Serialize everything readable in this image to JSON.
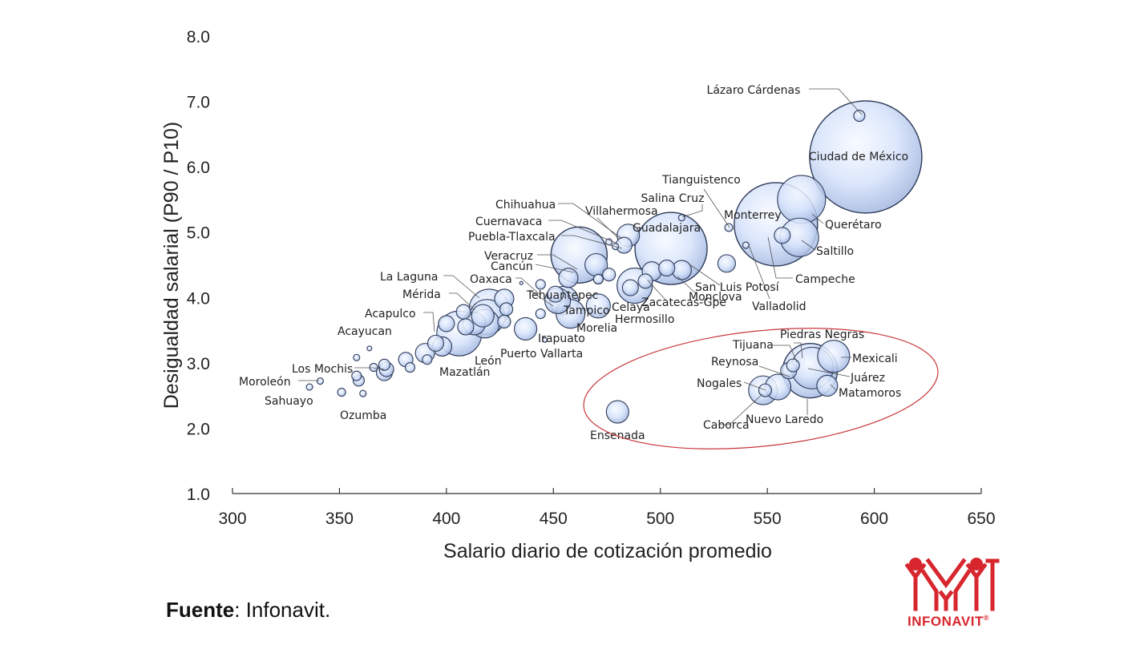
{
  "chart_data": {
    "type": "scatter",
    "subtype": "bubble",
    "xlabel": "Salario diario de cotización promedio",
    "ylabel": "Desigualdad salarial (P90 / P10)",
    "xlim": [
      300,
      650
    ],
    "ylim": [
      1.0,
      8.0
    ],
    "xticks": [
      "300",
      "350",
      "400",
      "450",
      "500",
      "550",
      "600",
      "650"
    ],
    "yticks": [
      "1.0",
      "2.0",
      "3.0",
      "4.0",
      "5.0",
      "6.0",
      "7.0",
      "8.0"
    ],
    "labeled_points": [
      {
        "name": "Lázaro Cárdenas",
        "x": 593,
        "y": 6.78,
        "r": 7
      },
      {
        "name": "Ciudad de México",
        "x": 596,
        "y": 6.15,
        "r": 70
      },
      {
        "name": "Tianguistenco",
        "x": 532,
        "y": 5.07,
        "r": 5
      },
      {
        "name": "Monterrey",
        "x": 554,
        "y": 5.12,
        "r": 52
      },
      {
        "name": "Querétaro",
        "x": 566,
        "y": 5.5,
        "r": 30
      },
      {
        "name": "Saltillo",
        "x": 565,
        "y": 4.92,
        "r": 24
      },
      {
        "name": "Campeche",
        "x": 557,
        "y": 4.95,
        "r": 10
      },
      {
        "name": "Valladolid",
        "x": 540,
        "y": 4.8,
        "r": 4
      },
      {
        "name": "Salina Cruz",
        "x": 510,
        "y": 5.22,
        "r": 4
      },
      {
        "name": "Guadalajara",
        "x": 505,
        "y": 4.75,
        "r": 45
      },
      {
        "name": "San Luis Potosí",
        "x": 510,
        "y": 4.42,
        "r": 12
      },
      {
        "name": "Monclova",
        "x": 493,
        "y": 4.25,
        "r": 9
      },
      {
        "name": "Zacatecas-Gpe",
        "x": 488,
        "y": 4.18,
        "r": 22
      },
      {
        "name": "Hermosillo",
        "x": 486,
        "y": 4.15,
        "r": 10
      },
      {
        "name": "Villahermosa",
        "x": 476,
        "y": 4.85,
        "r": 4
      },
      {
        "name": "Chihuahua",
        "x": 479,
        "y": 4.78,
        "r": 4
      },
      {
        "name": "Cuernavaca",
        "x": 470,
        "y": 4.5,
        "r": 14
      },
      {
        "name": "Puebla-Tlaxcala",
        "x": 462,
        "y": 4.65,
        "r": 35
      },
      {
        "name": "Veracruz",
        "x": 471,
        "y": 4.28,
        "r": 6
      },
      {
        "name": "Celaya",
        "x": 476,
        "y": 4.35,
        "r": 8
      },
      {
        "name": "Cancún",
        "x": 457,
        "y": 4.3,
        "r": 12
      },
      {
        "name": "Oaxaca",
        "x": 435,
        "y": 4.22,
        "r": 2
      },
      {
        "name": "Tehuantepec",
        "x": 444,
        "y": 3.75,
        "r": 6
      },
      {
        "name": "Tampico",
        "x": 452,
        "y": 3.95,
        "r": 16
      },
      {
        "name": "Morelia",
        "x": 471,
        "y": 3.87,
        "r": 15
      },
      {
        "name": "Irapuato",
        "x": 446,
        "y": 3.35,
        "r": 3
      },
      {
        "name": "Puerto Vallarta",
        "x": 437,
        "y": 3.52,
        "r": 14
      },
      {
        "name": "La Laguna",
        "x": 419,
        "y": 3.7,
        "r": 22
      },
      {
        "name": "Mérida",
        "x": 420,
        "y": 3.82,
        "r": 25
      },
      {
        "name": "León",
        "x": 406,
        "y": 3.45,
        "r": 28
      },
      {
        "name": "Mazatlán",
        "x": 398,
        "y": 3.25,
        "r": 12
      },
      {
        "name": "Acapulco",
        "x": 395,
        "y": 3.3,
        "r": 10
      },
      {
        "name": "Acayucan",
        "x": 364,
        "y": 3.22,
        "r": 3
      },
      {
        "name": "Los Mochis",
        "x": 372,
        "y": 2.9,
        "r": 9
      },
      {
        "name": "Moroleón",
        "x": 341,
        "y": 2.72,
        "r": 4
      },
      {
        "name": "Sahuayo",
        "x": 336,
        "y": 2.63,
        "r": 4
      },
      {
        "name": "Ozumba",
        "x": 361,
        "y": 2.53,
        "r": 4
      },
      {
        "name": "Ensenada",
        "x": 480,
        "y": 2.25,
        "r": 14
      },
      {
        "name": "Tijuana",
        "x": 570,
        "y": 2.88,
        "r": 34
      },
      {
        "name": "Piedras Negras",
        "x": 562,
        "y": 2.96,
        "r": 8
      },
      {
        "name": "Mexicali",
        "x": 581,
        "y": 3.1,
        "r": 20
      },
      {
        "name": "Juárez",
        "x": 571,
        "y": 2.92,
        "r": 26
      },
      {
        "name": "Matamoros",
        "x": 578,
        "y": 2.65,
        "r": 13
      },
      {
        "name": "Reynosa",
        "x": 560,
        "y": 2.88,
        "r": 10
      },
      {
        "name": "Nogales",
        "x": 549,
        "y": 2.58,
        "r": 8
      },
      {
        "name": "Nuevo Laredo",
        "x": 555,
        "y": 2.63,
        "r": 16
      },
      {
        "name": "Caborca",
        "x": 548,
        "y": 2.58,
        "r": 18
      }
    ],
    "unlabeled_points": [
      {
        "x": 383,
        "y": 2.93,
        "r": 6
      },
      {
        "x": 381,
        "y": 3.05,
        "r": 9
      },
      {
        "x": 391,
        "y": 3.05,
        "r": 6
      },
      {
        "x": 390,
        "y": 3.15,
        "r": 12
      },
      {
        "x": 400,
        "y": 3.6,
        "r": 10
      },
      {
        "x": 409,
        "y": 3.55,
        "r": 10
      },
      {
        "x": 408,
        "y": 3.78,
        "r": 9
      },
      {
        "x": 413,
        "y": 3.6,
        "r": 14
      },
      {
        "x": 418,
        "y": 3.6,
        "r": 18
      },
      {
        "x": 427,
        "y": 3.98,
        "r": 12
      },
      {
        "x": 428,
        "y": 3.82,
        "r": 8
      },
      {
        "x": 451,
        "y": 4.05,
        "r": 10
      },
      {
        "x": 455,
        "y": 3.95,
        "r": 18
      },
      {
        "x": 458,
        "y": 3.75,
        "r": 18
      },
      {
        "x": 496,
        "y": 4.4,
        "r": 12
      },
      {
        "x": 503,
        "y": 4.45,
        "r": 10
      },
      {
        "x": 531,
        "y": 4.52,
        "r": 11
      },
      {
        "x": 485,
        "y": 4.95,
        "r": 14
      },
      {
        "x": 483,
        "y": 4.8,
        "r": 10
      },
      {
        "x": 444,
        "y": 4.2,
        "r": 6
      },
      {
        "x": 471,
        "y": 4.28,
        "r": 6
      },
      {
        "x": 371,
        "y": 2.97,
        "r": 7
      },
      {
        "x": 371,
        "y": 2.85,
        "r": 10
      },
      {
        "x": 366,
        "y": 2.93,
        "r": 5
      },
      {
        "x": 359,
        "y": 2.73,
        "r": 7
      },
      {
        "x": 358,
        "y": 2.8,
        "r": 6
      },
      {
        "x": 358,
        "y": 3.08,
        "r": 4
      },
      {
        "x": 351,
        "y": 2.55,
        "r": 5
      },
      {
        "x": 417,
        "y": 3.72,
        "r": 14
      },
      {
        "x": 427,
        "y": 3.63,
        "r": 8
      }
    ],
    "annotation": "Región fronteriza norte destacada con elipse roja",
    "annotation_color": "#c8383d",
    "bubble_fill": "#d6e3fb",
    "bubble_stroke": "#2e3a58"
  },
  "footer": {
    "source_label": "Fuente",
    "source_text": ": Infonavit."
  },
  "logo": {
    "text": "INFONAVIT",
    "mark": "®",
    "color": "#d7262d"
  }
}
